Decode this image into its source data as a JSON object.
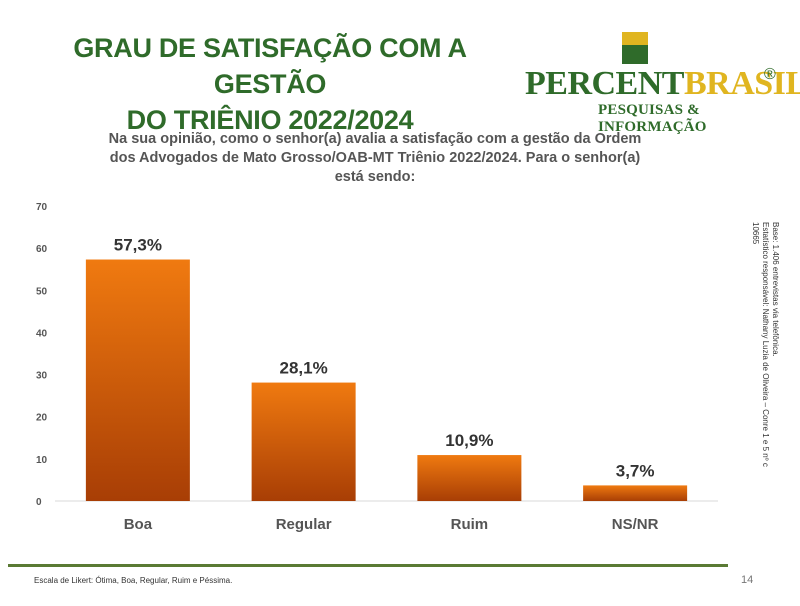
{
  "header": {
    "title_line1": "GRAU DE SATISFAÇÃO COM A GESTÃO",
    "title_line2": "DO TRIÊNIO 2022/2024"
  },
  "logo": {
    "name_part1": "PERCENT",
    "name_part2": "BRASIL",
    "registered": "®",
    "tagline": "PESQUISAS & INFORMAÇÃO",
    "green": "#2f6b2a",
    "yellow": "#e0b520"
  },
  "question": "Na sua opinião, como o senhor(a) avalia a satisfação com a gestão da Ordem dos Advogados de Mato Grosso/OAB-MT Triênio 2022/2024. Para o senhor(a) está sendo:",
  "side_note": {
    "line1": "Base: 1.406 entrevistas via telefônica.",
    "line2": "Estatístico responsável: Nathany Luzia de Oliveira – Conre 1 e 5 nº c 10665"
  },
  "footer": {
    "note": "Escala de Likert: Ótima, Boa, Regular, Ruim e Péssima.",
    "page_number": "14"
  },
  "chart_data": {
    "type": "bar",
    "categories": [
      "Boa",
      "Regular",
      "Ruim",
      "NS/NR"
    ],
    "values": [
      57.3,
      28.1,
      10.9,
      3.7
    ],
    "data_labels": [
      "57,3%",
      "28,1%",
      "10,9%",
      "3,7%"
    ],
    "ylim": [
      0,
      70
    ],
    "yticks": [
      0,
      10,
      20,
      30,
      40,
      50,
      60,
      70
    ],
    "grid": false,
    "legend": "none",
    "bar_color_top": "#f07a10",
    "bar_color_bottom": "#a83e05"
  }
}
